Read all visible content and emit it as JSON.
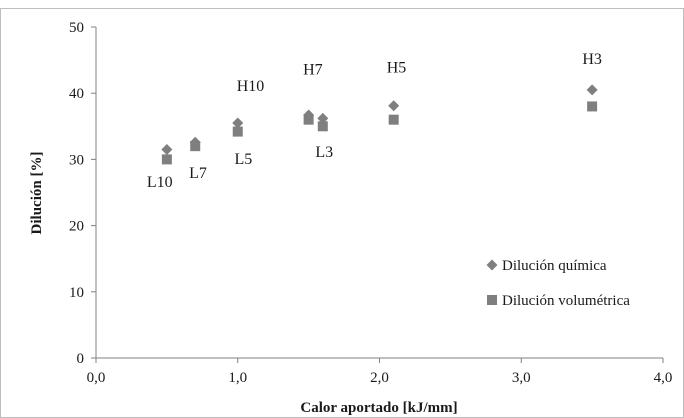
{
  "chart_data": {
    "type": "scatter",
    "title": "",
    "xlabel": "Calor aportado [kJ/mm]",
    "ylabel": "Dilución [%]",
    "xlim": [
      0,
      4
    ],
    "ylim": [
      0,
      50
    ],
    "x_ticks": [
      "0,0",
      "1,0",
      "2,0",
      "3,0",
      "4,0"
    ],
    "y_ticks": [
      "0",
      "10",
      "20",
      "30",
      "40",
      "50"
    ],
    "grid": false,
    "legend_position": "bottom-right",
    "series": [
      {
        "name": "Dilución química",
        "marker": "diamond",
        "color": "#7f7f7f",
        "points": [
          {
            "x": 0.5,
            "y": 31.5
          },
          {
            "x": 0.7,
            "y": 32.6
          },
          {
            "x": 1.0,
            "y": 35.5
          },
          {
            "x": 1.5,
            "y": 36.7
          },
          {
            "x": 1.6,
            "y": 36.2
          },
          {
            "x": 2.1,
            "y": 38.1
          },
          {
            "x": 3.5,
            "y": 40.5
          }
        ]
      },
      {
        "name": "Dilución volumétrica",
        "marker": "square",
        "color": "#7f7f7f",
        "points": [
          {
            "x": 0.5,
            "y": 30.0
          },
          {
            "x": 0.7,
            "y": 32.0
          },
          {
            "x": 1.0,
            "y": 34.2
          },
          {
            "x": 1.5,
            "y": 36.0
          },
          {
            "x": 1.6,
            "y": 35.0
          },
          {
            "x": 2.1,
            "y": 36.0
          },
          {
            "x": 3.5,
            "y": 38.0
          }
        ]
      }
    ],
    "annotations": [
      {
        "text": "L10",
        "x": 0.45,
        "y": 25.8
      },
      {
        "text": "L7",
        "x": 0.72,
        "y": 27.2
      },
      {
        "text": "L5",
        "x": 1.04,
        "y": 29.3
      },
      {
        "text": "H10",
        "x": 1.09,
        "y": 40.3
      },
      {
        "text": "H7",
        "x": 1.53,
        "y": 42.8
      },
      {
        "text": "L3",
        "x": 1.61,
        "y": 30.4
      },
      {
        "text": "H5",
        "x": 2.12,
        "y": 43.1
      },
      {
        "text": "H3",
        "x": 3.5,
        "y": 44.4
      }
    ]
  }
}
